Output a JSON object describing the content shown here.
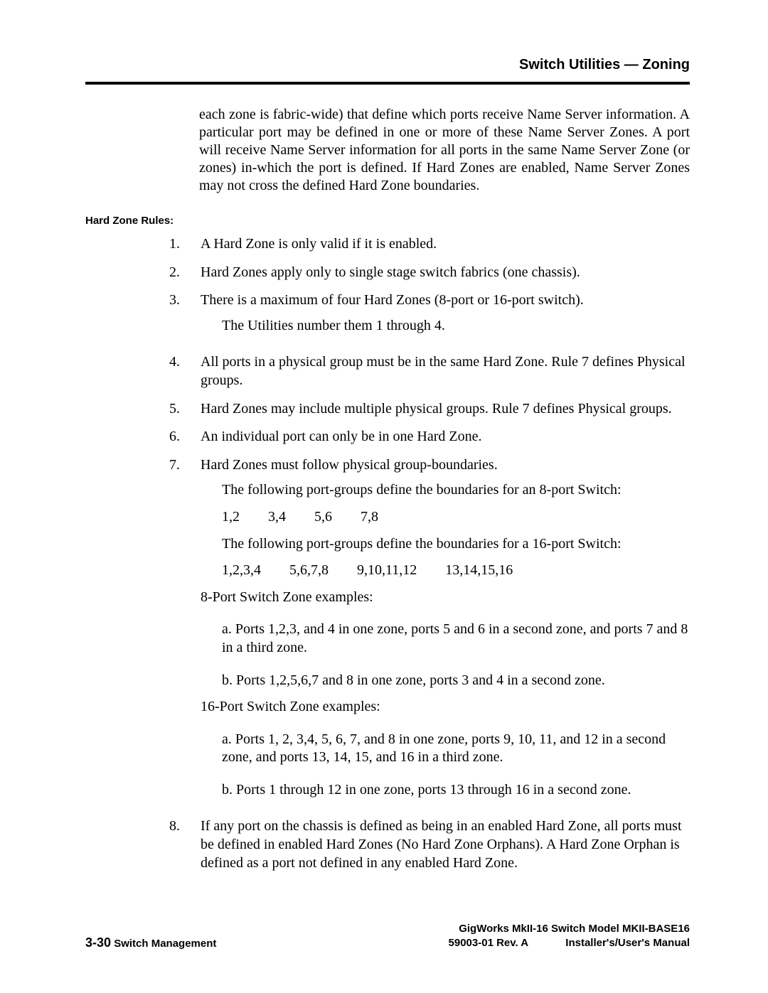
{
  "header": {
    "title": "Switch Utilities — Zoning"
  },
  "intro": "each zone is fabric-wide) that define which ports receive Name Server information. A particular port may be defined in one or more of these Name Server Zones. A port will receive Name Server information for all ports in the same Name Server Zone (or zones) in-which the port is defined. If Hard Zones are enabled, Name Server Zones may not cross the defined Hard Zone boundaries.",
  "side_label": "Hard Zone Rules:",
  "rules": {
    "r1": {
      "n": "1.",
      "t": "A Hard Zone is only valid if it is enabled."
    },
    "r2": {
      "n": "2.",
      "t": "Hard Zones apply only to single stage switch fabrics (one chassis)."
    },
    "r3": {
      "n": "3.",
      "t": "There is a maximum of four Hard Zones (8-port or 16-port  switch).",
      "sub1": "The Utilities number them 1 through 4."
    },
    "r4": {
      "n": "4.",
      "t": "All ports in a physical group must be in the same Hard Zone. Rule 7 defines Physical groups."
    },
    "r5": {
      "n": "5.",
      "t": "Hard Zones may include multiple physical groups. Rule 7 defines Physical groups."
    },
    "r6": {
      "n": "6.",
      "t": "An individual port can only be in one Hard Zone."
    },
    "r7": {
      "n": "7.",
      "t": "Hard Zones must follow physical group-boundaries.",
      "s1": "The following port-groups define the boundaries for an 8-port Switch:",
      "g8": "1,2  3,4  5,6  7,8",
      "s2": "The following port-groups define the boundaries for a 16-port Switch:",
      "g16": "1,2,3,4  5,6,7,8  9,10,11,12  13,14,15,16",
      "ex8_title": "8-Port Switch Zone examples:",
      "ex8_a": "a.  Ports 1,2,3, and 4 in one zone, ports 5 and 6 in a second zone, and ports 7 and 8 in a third zone.",
      "ex8_b": "b.  Ports 1,2,5,6,7 and 8 in one zone, ports 3 and 4 in a second zone.",
      "ex16_title": "16-Port Switch Zone examples:",
      "ex16_a": "a.  Ports 1, 2, 3,4, 5, 6, 7, and 8 in one zone, ports 9, 10, 11, and 12 in a second zone, and ports 13, 14, 15, and 16 in a third zone.",
      "ex16_b": "b.  Ports 1 through 12 in one zone, ports 13 through 16 in a second zone."
    },
    "r8": {
      "n": "8.",
      "t": "If any port on the chassis is defined as being in an enabled Hard Zone, all ports must be defined in enabled Hard Zones (No Hard Zone Orphans). A Hard Zone Orphan is defined as a port not defined in any enabled Hard Zone."
    }
  },
  "footer": {
    "page_num": "3-30",
    "section": "Switch Management",
    "product": "GigWorks MkII-16 Switch Model MKII-BASE16",
    "rev": "59003-01 Rev. A",
    "manual": "Installer's/User's Manual"
  }
}
